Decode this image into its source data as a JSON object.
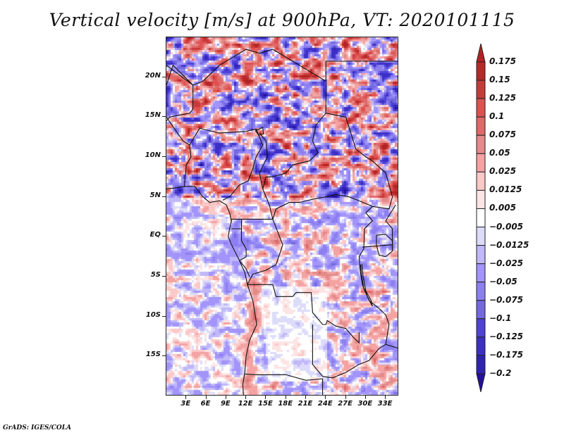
{
  "title": "Vertical velocity [m/s] at 900hPa, VT: 2020101115",
  "footer": "GrADS: IGES/COLA",
  "chart_data": {
    "type": "heatmap",
    "title": "Vertical velocity [m/s] at 900hPa, VT: 2020101115",
    "variable": "Vertical velocity",
    "units": "m/s",
    "level": "900hPa",
    "valid_time": "2020101115",
    "xlabel": "",
    "ylabel": "",
    "x_range_deg": [
      0,
      35
    ],
    "y_range_deg": [
      -20,
      25
    ],
    "x_ticks": [
      {
        "value": 3,
        "label": "3E"
      },
      {
        "value": 6,
        "label": "6E"
      },
      {
        "value": 9,
        "label": "9E"
      },
      {
        "value": 12,
        "label": "12E"
      },
      {
        "value": 15,
        "label": "15E"
      },
      {
        "value": 18,
        "label": "18E"
      },
      {
        "value": 21,
        "label": "21E"
      },
      {
        "value": 24,
        "label": "24E"
      },
      {
        "value": 27,
        "label": "27E"
      },
      {
        "value": 30,
        "label": "30E"
      },
      {
        "value": 33,
        "label": "33E"
      }
    ],
    "y_ticks": [
      {
        "value": 20,
        "label": "20N"
      },
      {
        "value": 15,
        "label": "15N"
      },
      {
        "value": 10,
        "label": "10N"
      },
      {
        "value": 5,
        "label": "5N"
      },
      {
        "value": 0,
        "label": "EQ"
      },
      {
        "value": -5,
        "label": "5S"
      },
      {
        "value": -10,
        "label": "10S"
      },
      {
        "value": -15,
        "label": "15S"
      }
    ],
    "colorbar": {
      "orientation": "vertical",
      "placement": "right",
      "extend": "both",
      "levels": [
        "0.175",
        "0.15",
        "0.125",
        "0.1",
        "0.075",
        "0.05",
        "0.025",
        "0.0125",
        "0.005",
        "-0.005",
        "-0.0125",
        "-0.025",
        "-0.05",
        "-0.075",
        "-0.1",
        "-0.125",
        "-0.175",
        "-0.2"
      ],
      "colors": [
        "#b22222",
        "#b82828",
        "#c83a3a",
        "#e05050",
        "#e06868",
        "#e38a8a",
        "#f4a2a2",
        "#fbc8c8",
        "#fde4e4",
        "#ffffff",
        "#dcdcfa",
        "#c0b8f8",
        "#a294fa",
        "#8c80f0",
        "#7468e0",
        "#4e42d8",
        "#3c2fc8",
        "#3022b4",
        "#24109c"
      ]
    },
    "features": [
      "coastlines",
      "country borders",
      "Lake Victoria",
      "Lake Tanganyika",
      "Lake Malawi",
      "Lake Chad"
    ]
  }
}
